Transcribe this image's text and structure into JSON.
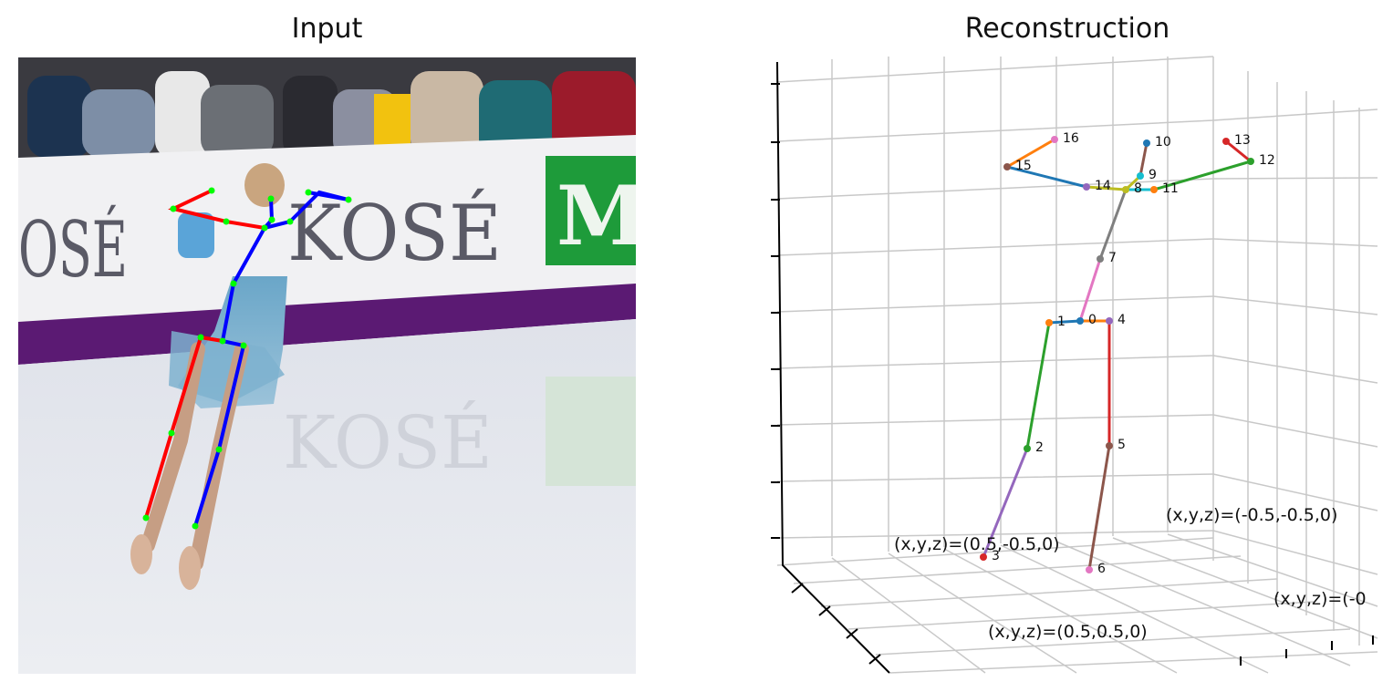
{
  "panels": {
    "input_title": "Input",
    "reconstruction_title": "Reconstruction"
  },
  "input_scene": {
    "banner_text_left": "OSÉ",
    "banner_text_right": "KOSÉ",
    "banner_logo_letter": "M",
    "reflection_text": "KOSÉ",
    "colors": {
      "left_side": "#ff0000",
      "right_side": "#0000ff",
      "joint": "#00ff00"
    }
  },
  "reconstruction": {
    "joints": [
      {
        "id": "0",
        "label": "0",
        "color": "#1f77b4"
      },
      {
        "id": "1",
        "label": "1",
        "color": "#ff7f0e"
      },
      {
        "id": "2",
        "label": "2",
        "color": "#2ca02c"
      },
      {
        "id": "3",
        "label": "3",
        "color": "#d62728"
      },
      {
        "id": "4",
        "label": "4",
        "color": "#9467bd"
      },
      {
        "id": "5",
        "label": "5",
        "color": "#8c564b"
      },
      {
        "id": "6",
        "label": "6",
        "color": "#e377c2"
      },
      {
        "id": "7",
        "label": "7",
        "color": "#7f7f7f"
      },
      {
        "id": "8",
        "label": "8",
        "color": "#bcbd22"
      },
      {
        "id": "9",
        "label": "9",
        "color": "#17becf"
      },
      {
        "id": "10",
        "label": "10",
        "color": "#1f77b4"
      },
      {
        "id": "11",
        "label": "11",
        "color": "#ff7f0e"
      },
      {
        "id": "12",
        "label": "12",
        "color": "#2ca02c"
      },
      {
        "id": "13",
        "label": "13",
        "color": "#d62728"
      },
      {
        "id": "14",
        "label": "14",
        "color": "#9467bd"
      },
      {
        "id": "15",
        "label": "15",
        "color": "#8c564b"
      },
      {
        "id": "16",
        "label": "16",
        "color": "#e377c2"
      }
    ],
    "bones": [
      {
        "from": "0",
        "to": "1",
        "color": "#1f77b4"
      },
      {
        "from": "1",
        "to": "2",
        "color": "#2ca02c"
      },
      {
        "from": "2",
        "to": "3",
        "color": "#9467bd"
      },
      {
        "from": "0",
        "to": "4",
        "color": "#ff7f0e"
      },
      {
        "from": "4",
        "to": "5",
        "color": "#d62728"
      },
      {
        "from": "5",
        "to": "6",
        "color": "#8c564b"
      },
      {
        "from": "0",
        "to": "7",
        "color": "#e377c2"
      },
      {
        "from": "7",
        "to": "8",
        "color": "#7f7f7f"
      },
      {
        "from": "8",
        "to": "9",
        "color": "#bcbd22"
      },
      {
        "from": "9",
        "to": "10",
        "color": "#8c564b"
      },
      {
        "from": "8",
        "to": "11",
        "color": "#17becf"
      },
      {
        "from": "11",
        "to": "12",
        "color": "#2ca02c"
      },
      {
        "from": "12",
        "to": "13",
        "color": "#d62728"
      },
      {
        "from": "8",
        "to": "14",
        "color": "#bcbd22"
      },
      {
        "from": "14",
        "to": "15",
        "color": "#1f77b4"
      },
      {
        "from": "15",
        "to": "16",
        "color": "#ff7f0e"
      }
    ],
    "corner_labels": [
      {
        "text": "(x,y,z)=(0.5,-0.5,0)"
      },
      {
        "text": "(x,y,z)=(-0.5,-0.5,0)"
      },
      {
        "text": "(x,y,z)=(0.5,0.5,0)"
      },
      {
        "text": "(x,y,z)=(-0"
      }
    ]
  }
}
